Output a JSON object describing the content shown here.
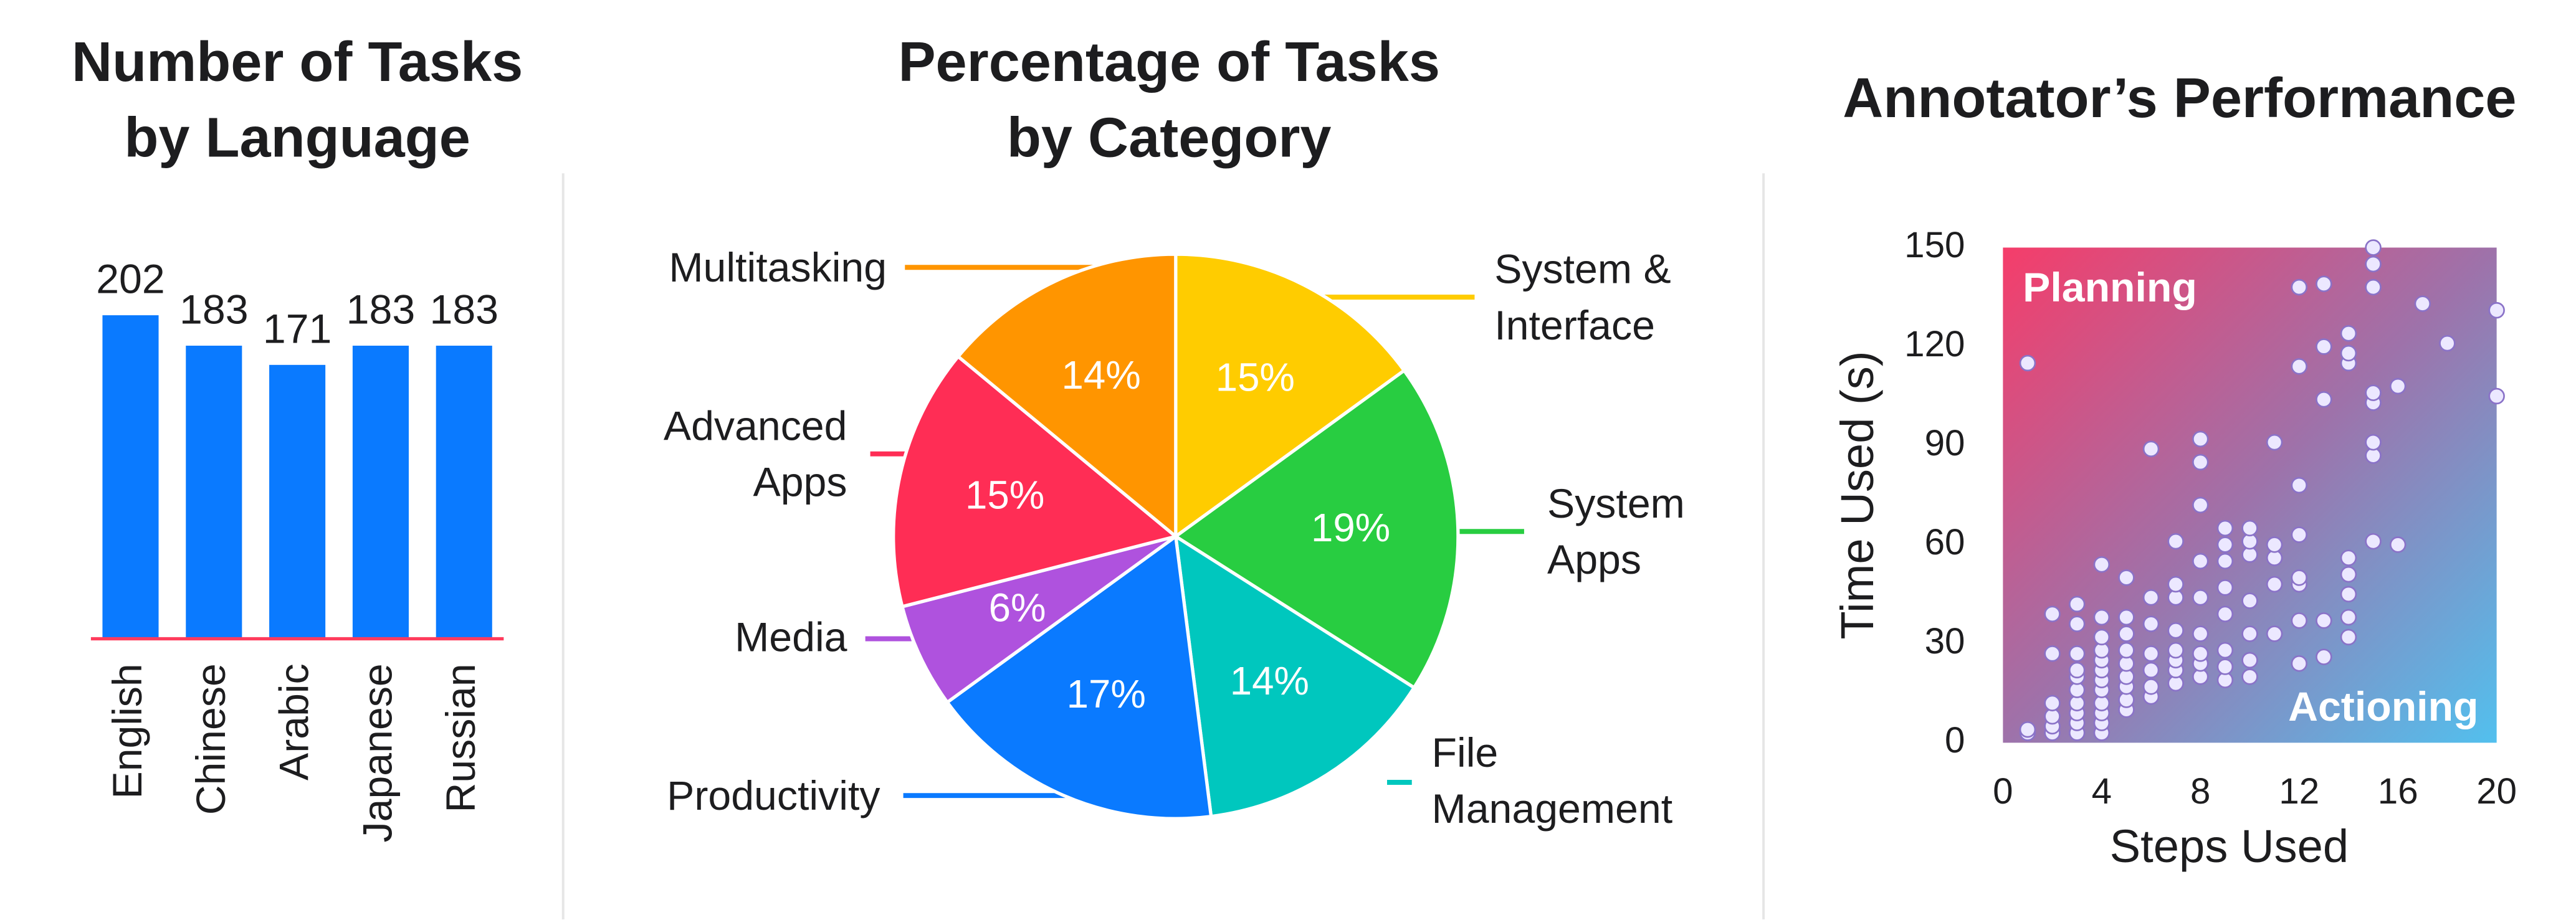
{
  "chart_data": [
    {
      "type": "bar",
      "title": [
        "Number of Tasks",
        "by Language"
      ],
      "categories": [
        "English",
        "Chinese",
        "Arabic",
        "Japanese",
        "Russian"
      ],
      "values": [
        202,
        183,
        171,
        183,
        183
      ],
      "color": "#0a7aff",
      "baseline_color": "#ff3b5c"
    },
    {
      "type": "pie",
      "title": [
        "Percentage of Tasks",
        "by Category"
      ],
      "categories": [
        [
          "System &",
          "Interface"
        ],
        [
          "System",
          "Apps"
        ],
        [
          "File",
          "Management"
        ],
        [
          "Productivity"
        ],
        [
          "Media"
        ],
        [
          "Advanced",
          "Apps"
        ],
        [
          "Multitasking"
        ]
      ],
      "values": [
        15,
        19,
        14,
        17,
        6,
        15,
        14
      ],
      "value_labels": [
        "15%",
        "19%",
        "14%",
        "17%",
        "6%",
        "15%",
        "14%"
      ],
      "colors": [
        "#ffcc00",
        "#28cd41",
        "#00c7be",
        "#0a7aff",
        "#af52de",
        "#ff2d55",
        "#ff9500"
      ]
    },
    {
      "type": "scatter",
      "title": [
        "Annotator’s Performance"
      ],
      "x_label": "Steps Used",
      "y_label": "Time Used (s)",
      "annotations": [
        "Planning",
        "Actioning"
      ],
      "xlim": [
        0,
        20
      ],
      "ylim": [
        0,
        150
      ],
      "xticks": [
        0,
        4,
        8,
        12,
        16,
        20
      ],
      "yticks": [
        0,
        30,
        60,
        90,
        120,
        150
      ],
      "x": [
        1,
        1,
        1,
        2,
        2,
        2,
        2,
        2,
        2,
        3,
        3,
        3,
        3,
        3,
        3,
        3,
        3,
        3,
        3,
        4,
        4,
        4,
        4,
        4,
        4,
        4,
        4,
        4,
        4,
        4,
        4,
        5,
        5,
        5,
        5,
        5,
        5,
        5,
        5,
        5,
        6,
        6,
        6,
        6,
        6,
        6,
        6,
        7,
        7,
        7,
        7,
        7,
        7,
        7,
        7,
        8,
        8,
        8,
        8,
        8,
        8,
        8,
        8,
        8,
        9,
        9,
        9,
        9,
        9,
        9,
        9,
        9,
        10,
        10,
        10,
        10,
        10,
        10,
        10,
        11,
        11,
        11,
        11,
        11,
        12,
        12,
        12,
        12,
        12,
        12,
        12,
        12,
        13,
        13,
        13,
        13,
        13,
        14,
        14,
        14,
        14,
        14,
        14,
        14,
        14,
        15,
        15,
        15,
        15,
        15,
        15,
        15,
        15,
        16,
        16,
        17,
        18,
        20,
        20
      ],
      "y": [
        3,
        4,
        115,
        3,
        5,
        8,
        12,
        27,
        39,
        3,
        6,
        9,
        12,
        16,
        20,
        22,
        27,
        36,
        42,
        3,
        6,
        9,
        12,
        16,
        19,
        22,
        25,
        28,
        32,
        38,
        54,
        10,
        13,
        17,
        20,
        24,
        28,
        33,
        38,
        50,
        14,
        17,
        22,
        27,
        36,
        44,
        89,
        18,
        22,
        25,
        28,
        34,
        44,
        48,
        61,
        20,
        24,
        27,
        33,
        44,
        55,
        72,
        85,
        92,
        19,
        23,
        28,
        39,
        47,
        55,
        60,
        65,
        20,
        25,
        33,
        43,
        57,
        61,
        65,
        33,
        48,
        56,
        60,
        91,
        24,
        37,
        48,
        50,
        63,
        78,
        114,
        138,
        26,
        37,
        104,
        120,
        139,
        32,
        38,
        45,
        51,
        56,
        115,
        118,
        124,
        61,
        87,
        91,
        103,
        106,
        138,
        145,
        150,
        60,
        108,
        133,
        121,
        105,
        131
      ],
      "color": "#ece8ff",
      "edge_color": "#8a72c8"
    }
  ]
}
